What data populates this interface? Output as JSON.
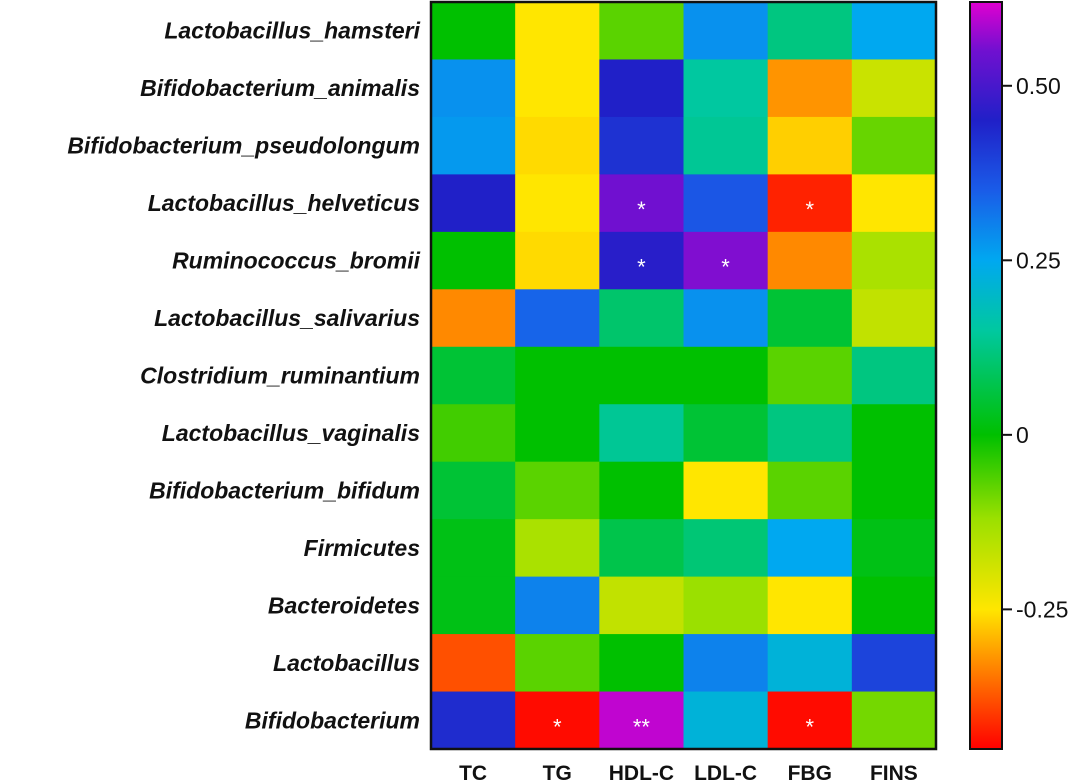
{
  "chart_data": {
    "type": "heatmap",
    "title": "",
    "xlabel": "",
    "ylabel": "",
    "columns": [
      "TC",
      "TG",
      "HDL-C",
      "LDL-C",
      "FBG",
      "FINS"
    ],
    "rows": [
      "Lactobacillus_hamsteri",
      "Bifidobacterium_animalis",
      "Bifidobacterium_pseudolongum",
      "Lactobacillus_helveticus",
      "Ruminococcus_bromii",
      "Lactobacillus_salivarius",
      "Clostridium_ruminantium",
      "Lactobacillus_vaginalis",
      "Bifidobacterium_bifidum",
      "Firmicutes",
      "Bacteroidetes",
      "Lactobacillus",
      "Bifidobacterium"
    ],
    "values": [
      [
        0.0,
        -0.25,
        -0.07,
        0.28,
        0.12,
        0.25
      ],
      [
        0.28,
        -0.25,
        0.45,
        0.15,
        -0.32,
        -0.18
      ],
      [
        0.27,
        -0.26,
        0.42,
        0.14,
        -0.27,
        -0.08
      ],
      [
        0.45,
        -0.25,
        0.55,
        0.36,
        -0.42,
        -0.25
      ],
      [
        0.0,
        -0.26,
        0.46,
        0.56,
        -0.33,
        -0.14
      ],
      [
        -0.33,
        0.34,
        0.1,
        0.28,
        0.05,
        -0.17
      ],
      [
        0.05,
        0.0,
        0.0,
        0.0,
        -0.07,
        0.12
      ],
      [
        -0.05,
        0.0,
        0.14,
        0.05,
        0.12,
        0.0
      ],
      [
        0.05,
        -0.07,
        0.0,
        -0.25,
        -0.07,
        0.0
      ],
      [
        0.02,
        -0.14,
        0.07,
        0.11,
        0.25,
        0.02
      ],
      [
        0.02,
        0.3,
        -0.17,
        -0.12,
        -0.25,
        0.0
      ],
      [
        -0.38,
        -0.07,
        0.0,
        0.3,
        0.22,
        0.39
      ],
      [
        0.43,
        -0.44,
        0.6,
        0.22,
        -0.44,
        -0.09
      ]
    ],
    "significance": [
      [
        "",
        "",
        "",
        "",
        "",
        ""
      ],
      [
        "",
        "",
        "",
        "",
        "",
        ""
      ],
      [
        "",
        "",
        "",
        "",
        "",
        ""
      ],
      [
        "",
        "",
        "*",
        "",
        "*",
        ""
      ],
      [
        "",
        "",
        "*",
        "*",
        "",
        ""
      ],
      [
        "",
        "",
        "",
        "",
        "",
        ""
      ],
      [
        "",
        "",
        "",
        "",
        "",
        ""
      ],
      [
        "",
        "",
        "",
        "",
        "",
        ""
      ],
      [
        "",
        "",
        "",
        "",
        "",
        ""
      ],
      [
        "",
        "",
        "",
        "",
        "",
        ""
      ],
      [
        "",
        "",
        "",
        "",
        "",
        ""
      ],
      [
        "",
        "",
        "",
        "",
        "",
        ""
      ],
      [
        "",
        "*",
        "**",
        "",
        "*",
        ""
      ]
    ],
    "colorbar": {
      "min": -0.45,
      "max": 0.62,
      "ticks": [
        0.5,
        0.25,
        0,
        -0.25
      ],
      "tick_labels": [
        "0.50",
        "0.25",
        "0",
        "-0.25"
      ],
      "position": "right",
      "colormap": [
        {
          "value": -0.45,
          "color": "#ff0000"
        },
        {
          "value": -0.32,
          "color": "#ff9400"
        },
        {
          "value": -0.25,
          "color": "#ffe600"
        },
        {
          "value": -0.12,
          "color": "#9be000"
        },
        {
          "value": 0.0,
          "color": "#00c000"
        },
        {
          "value": 0.15,
          "color": "#00c8a0"
        },
        {
          "value": 0.25,
          "color": "#00a8f0"
        },
        {
          "value": 0.35,
          "color": "#1a5ce8"
        },
        {
          "value": 0.45,
          "color": "#2020c8"
        },
        {
          "value": 0.55,
          "color": "#7010d0"
        },
        {
          "value": 0.62,
          "color": "#e000d0"
        }
      ]
    }
  }
}
